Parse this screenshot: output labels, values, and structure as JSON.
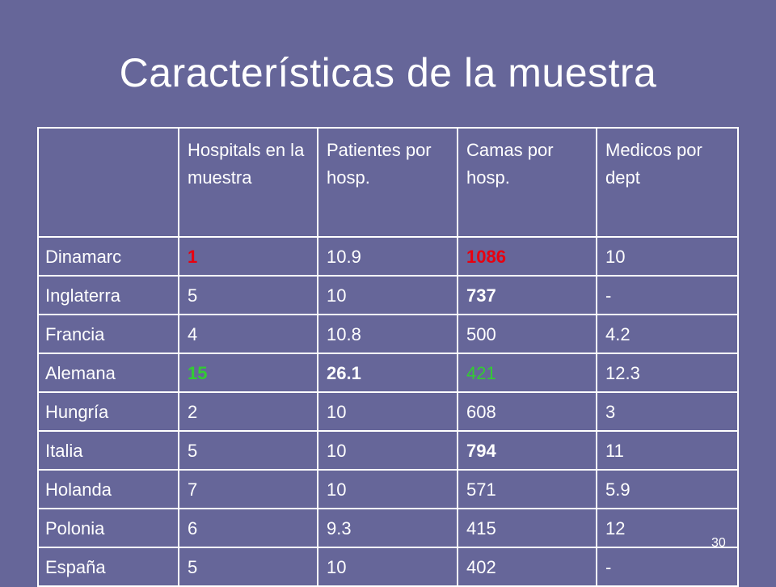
{
  "slide": {
    "title": "Características de la muestra",
    "page_number": "30"
  },
  "table": {
    "headers": [
      "",
      "Hospitals en la muestra",
      "Patientes por hosp.",
      "Camas por hosp.",
      "Medicos por dept"
    ],
    "rows": [
      [
        "Dinamarc",
        "1",
        "10.9",
        "1086",
        "10"
      ],
      [
        "Inglaterra",
        "5",
        "10",
        "737",
        "-"
      ],
      [
        "Francia",
        "4",
        "10.8",
        "500",
        "4.2"
      ],
      [
        "Alemana",
        "15",
        "26.1",
        "421",
        "12.3"
      ],
      [
        "Hungría",
        "2",
        "10",
        "608",
        "3"
      ],
      [
        "Italia",
        "5",
        "10",
        "794",
        "11"
      ],
      [
        "Holanda",
        "7",
        "10",
        "571",
        "5.9"
      ],
      [
        "Polonia",
        "6",
        "9.3",
        "415",
        "12"
      ],
      [
        "España",
        "5",
        "10",
        "402",
        "-"
      ]
    ]
  },
  "colors": {
    "background": "#666699",
    "text": "#ffffff",
    "highlight_red": "#e8000f",
    "highlight_green": "#33cc33"
  }
}
